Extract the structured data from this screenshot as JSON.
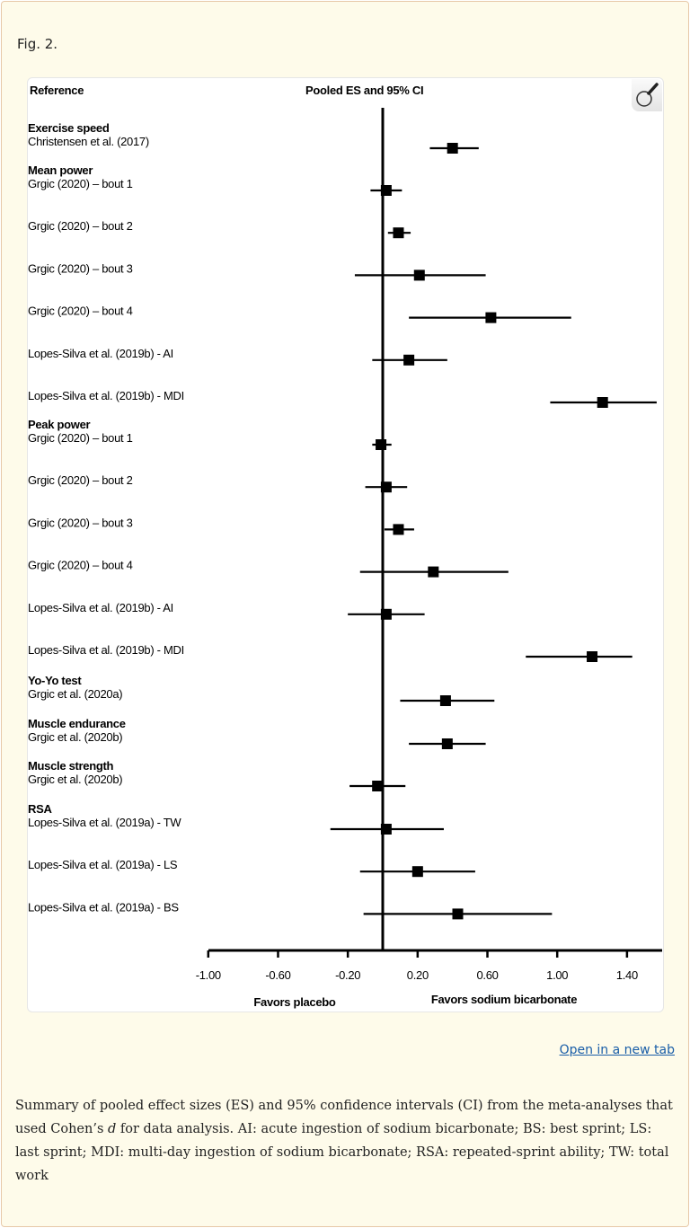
{
  "figure_label": "Fig. 2.",
  "open_link": "Open in a new tab",
  "caption_parts": {
    "before": "Summary of pooled effect sizes (ES) and 95% confidence intervals (CI) from the meta-analyses that used Cohen’s ",
    "italic": "d",
    "after": " for data analysis. AI: acute ingestion of sodium bicarbonate; BS: best sprint; LS: last sprint; MDI: multi-day ingestion of sodium bicarbonate; RSA: repeated-sprint ability; TW: total work"
  },
  "icons": {
    "zoom": "magnifier-icon"
  },
  "chart_data": {
    "type": "forest",
    "column_headers": {
      "reference": "Reference",
      "estimate": "Pooled ES and 95% CI"
    },
    "xlabel_left": "Favors placebo",
    "xlabel_right": "Favors sodium bicarbonate",
    "xlim": [
      -1.0,
      1.6
    ],
    "xticks": [
      "-1.00",
      "-0.60",
      "-0.20",
      "0.20",
      "0.60",
      "1.00",
      "1.40"
    ],
    "reference_line": 0,
    "groups": [
      {
        "name": "Exercise speed",
        "studies": [
          {
            "label": "Christensen et al. (2017)",
            "es": 0.4,
            "lo": 0.27,
            "hi": 0.55
          }
        ]
      },
      {
        "name": "Mean power",
        "studies": [
          {
            "label": "Grgic (2020) – bout 1",
            "es": 0.02,
            "lo": -0.07,
            "hi": 0.11
          },
          {
            "label": "Grgic (2020) – bout 2",
            "es": 0.09,
            "lo": 0.03,
            "hi": 0.16
          },
          {
            "label": "Grgic (2020) – bout 3",
            "es": 0.21,
            "lo": -0.16,
            "hi": 0.59
          },
          {
            "label": "Grgic (2020) – bout 4",
            "es": 0.62,
            "lo": 0.15,
            "hi": 1.08
          },
          {
            "label": "Lopes-Silva et al. (2019b) - AI",
            "es": 0.15,
            "lo": -0.06,
            "hi": 0.37
          },
          {
            "label": "Lopes-Silva et al. (2019b) - MDI",
            "es": 1.26,
            "lo": 0.96,
            "hi": 1.57
          }
        ]
      },
      {
        "name": "Peak power",
        "studies": [
          {
            "label": "Grgic (2020) – bout 1",
            "es": -0.01,
            "lo": -0.06,
            "hi": 0.05
          },
          {
            "label": "Grgic (2020) – bout 2",
            "es": 0.02,
            "lo": -0.1,
            "hi": 0.14
          },
          {
            "label": "Grgic (2020) – bout 3",
            "es": 0.09,
            "lo": 0.01,
            "hi": 0.18
          },
          {
            "label": "Grgic (2020) – bout 4",
            "es": 0.29,
            "lo": -0.13,
            "hi": 0.72
          },
          {
            "label": "Lopes-Silva et al. (2019b) - AI",
            "es": 0.02,
            "lo": -0.2,
            "hi": 0.24
          },
          {
            "label": "Lopes-Silva et al. (2019b) - MDI",
            "es": 1.2,
            "lo": 0.82,
            "hi": 1.43
          }
        ]
      },
      {
        "name": "Yo-Yo test",
        "studies": [
          {
            "label": "Grgic et al. (2020a)",
            "es": 0.36,
            "lo": 0.1,
            "hi": 0.64
          }
        ]
      },
      {
        "name": "Muscle endurance",
        "studies": [
          {
            "label": "Grgic et al. (2020b)",
            "es": 0.37,
            "lo": 0.15,
            "hi": 0.59
          }
        ]
      },
      {
        "name": "Muscle strength",
        "studies": [
          {
            "label": "Grgic et al. (2020b)",
            "es": -0.03,
            "lo": -0.19,
            "hi": 0.13
          }
        ]
      },
      {
        "name": "RSA",
        "studies": [
          {
            "label": "Lopes-Silva et al. (2019a) - TW",
            "es": 0.02,
            "lo": -0.3,
            "hi": 0.35
          },
          {
            "label": "Lopes-Silva et al. (2019a) - LS",
            "es": 0.2,
            "lo": -0.13,
            "hi": 0.53
          },
          {
            "label": "Lopes-Silva et al. (2019a) - BS",
            "es": 0.43,
            "lo": -0.11,
            "hi": 0.97
          }
        ]
      }
    ]
  }
}
